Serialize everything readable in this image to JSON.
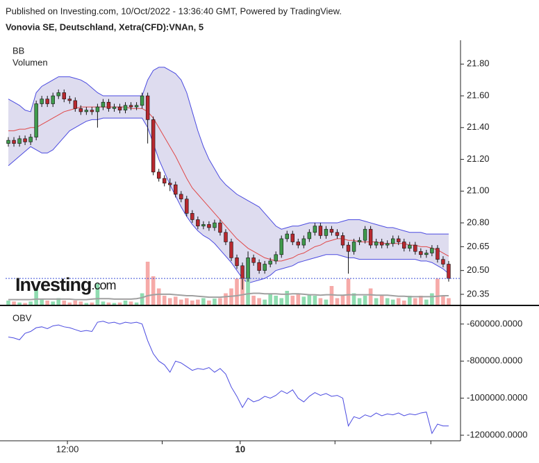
{
  "header": {
    "published": "Published on Investing.com, 10/Oct/2022 - 13:36:40 GMT, Powered by TradingView.",
    "title": "Vonovia SE, Deutschland, Xetra(CFD):VNAn, 5",
    "watermark": "Investing",
    "watermark_suffix": ".com"
  },
  "chart_data": [
    {
      "type": "candlestick",
      "legend": [
        "BB",
        "Volumen"
      ],
      "ylim": [
        20.28,
        21.95
      ],
      "yticks": [
        {
          "value": 21.8,
          "label": "21.80"
        },
        {
          "value": 21.6,
          "label": "21.60"
        },
        {
          "value": 21.4,
          "label": "21.40"
        },
        {
          "value": 21.2,
          "label": "21.20"
        },
        {
          "value": 21.0,
          "label": "21.00"
        },
        {
          "value": 20.8,
          "label": "20.80"
        },
        20.65,
        {
          "value": 20.5,
          "label": "20.50"
        },
        20.35
      ],
      "xlim": [
        -0.5,
        80.5
      ],
      "xticks": [
        {
          "value": 10.6,
          "label": "12:00",
          "bold": false
        },
        {
          "value": 27.6,
          "label": null
        },
        {
          "value": 41.6,
          "label": "10",
          "bold": true
        },
        {
          "value": 58.6,
          "label": null
        },
        {
          "value": 75.8,
          "label": null
        }
      ],
      "up_color": "#3f9a4c",
      "down_color": "#b8292f",
      "open": [
        21.3,
        21.32,
        21.3,
        21.33,
        21.31,
        21.34,
        21.55,
        21.58,
        21.55,
        21.6,
        21.62,
        21.58,
        21.57,
        21.52,
        21.5,
        21.51,
        21.5,
        21.53,
        21.56,
        21.52,
        21.53,
        21.51,
        21.54,
        21.53,
        21.54,
        21.6,
        21.45,
        21.12,
        21.08,
        21.05,
        21.04,
        20.98,
        20.95,
        20.86,
        20.82,
        20.78,
        20.79,
        20.77,
        20.8,
        20.74,
        20.68,
        20.58,
        20.53,
        20.45,
        20.58,
        20.55,
        20.5,
        20.54,
        20.56,
        20.6,
        20.7,
        20.73,
        20.68,
        20.66,
        20.7,
        20.74,
        20.78,
        20.72,
        20.76,
        20.74,
        20.72,
        20.66,
        20.62,
        20.68,
        20.69,
        20.76,
        20.66,
        20.68,
        20.66,
        20.67,
        20.7,
        20.68,
        20.64,
        20.66,
        20.62,
        20.6,
        20.61,
        20.64,
        20.57,
        20.54
      ],
      "high": [
        21.34,
        21.34,
        21.35,
        21.35,
        21.36,
        21.57,
        21.6,
        21.6,
        21.62,
        21.64,
        21.64,
        21.6,
        21.59,
        21.54,
        21.53,
        21.53,
        21.55,
        21.58,
        21.58,
        21.55,
        21.55,
        21.56,
        21.56,
        21.56,
        21.62,
        21.62,
        21.47,
        21.14,
        21.1,
        21.08,
        21.06,
        21.0,
        20.97,
        20.88,
        20.84,
        20.81,
        20.81,
        20.82,
        20.82,
        20.76,
        20.7,
        20.6,
        20.55,
        20.62,
        20.6,
        20.57,
        20.56,
        20.58,
        20.62,
        20.72,
        20.75,
        20.75,
        20.7,
        20.72,
        20.76,
        20.8,
        20.8,
        20.78,
        20.78,
        20.76,
        20.74,
        20.68,
        20.7,
        20.71,
        20.78,
        20.78,
        20.7,
        20.7,
        20.69,
        20.72,
        20.72,
        20.7,
        20.68,
        20.68,
        20.64,
        20.63,
        20.66,
        20.66,
        20.59,
        20.56
      ],
      "low": [
        21.28,
        21.28,
        21.28,
        21.29,
        21.29,
        21.32,
        21.53,
        21.53,
        21.53,
        21.58,
        21.56,
        21.55,
        21.5,
        21.48,
        21.48,
        21.48,
        21.4,
        21.51,
        21.5,
        21.5,
        21.49,
        21.49,
        21.51,
        21.51,
        21.52,
        21.3,
        21.1,
        21.06,
        21.03,
        21.0,
        20.96,
        20.93,
        20.84,
        20.8,
        20.76,
        20.76,
        20.75,
        20.75,
        20.72,
        20.66,
        20.56,
        20.51,
        20.38,
        20.43,
        20.53,
        20.48,
        20.48,
        20.52,
        20.54,
        20.58,
        20.68,
        20.66,
        20.64,
        20.64,
        20.68,
        20.72,
        20.7,
        20.7,
        20.72,
        20.7,
        20.64,
        20.48,
        20.6,
        20.66,
        20.67,
        20.64,
        20.64,
        20.64,
        20.64,
        20.65,
        20.66,
        20.62,
        20.62,
        20.6,
        20.58,
        20.58,
        20.59,
        20.55,
        20.52,
        20.43
      ],
      "close": [
        21.32,
        21.3,
        21.33,
        21.31,
        21.34,
        21.55,
        21.58,
        21.55,
        21.6,
        21.62,
        21.58,
        21.57,
        21.52,
        21.5,
        21.51,
        21.5,
        21.53,
        21.56,
        21.52,
        21.53,
        21.51,
        21.54,
        21.53,
        21.54,
        21.6,
        21.45,
        21.12,
        21.08,
        21.05,
        21.04,
        20.98,
        20.95,
        20.86,
        20.82,
        20.78,
        20.79,
        20.77,
        20.8,
        20.74,
        20.68,
        20.58,
        20.53,
        20.45,
        20.58,
        20.55,
        20.5,
        20.54,
        20.56,
        20.6,
        20.7,
        20.73,
        20.68,
        20.66,
        20.7,
        20.74,
        20.78,
        20.72,
        20.76,
        20.74,
        20.72,
        20.66,
        20.62,
        20.68,
        20.69,
        20.76,
        20.66,
        20.68,
        20.66,
        20.67,
        20.7,
        20.68,
        20.64,
        20.66,
        20.62,
        20.6,
        20.61,
        20.64,
        20.57,
        20.54,
        20.45
      ],
      "last_price_color": "#3b4fd8",
      "bb": {
        "fill": "#dedcef",
        "band_color": "#4a4ae0",
        "middle_color": "#e04848",
        "upper": [
          21.58,
          21.56,
          21.54,
          21.51,
          21.5,
          21.62,
          21.66,
          21.68,
          21.7,
          21.72,
          21.72,
          21.72,
          21.71,
          21.7,
          21.68,
          21.65,
          21.62,
          21.6,
          21.6,
          21.6,
          21.6,
          21.6,
          21.6,
          21.6,
          21.6,
          21.7,
          21.76,
          21.78,
          21.78,
          21.76,
          21.74,
          21.7,
          21.62,
          21.5,
          21.38,
          21.28,
          21.2,
          21.14,
          21.08,
          21.04,
          21.01,
          20.98,
          20.96,
          20.94,
          20.92,
          20.9,
          20.86,
          20.82,
          20.78,
          20.76,
          20.77,
          20.78,
          20.78,
          20.79,
          20.8,
          20.8,
          20.8,
          20.8,
          20.8,
          20.8,
          20.81,
          20.82,
          20.82,
          20.82,
          20.81,
          20.8,
          20.79,
          20.78,
          20.77,
          20.77,
          20.76,
          20.75,
          20.74,
          20.74,
          20.74,
          20.73,
          20.73,
          20.73,
          20.73,
          20.73
        ],
        "middle": [
          21.38,
          21.38,
          21.39,
          21.39,
          21.4,
          21.4,
          21.42,
          21.44,
          21.46,
          21.48,
          21.5,
          21.51,
          21.52,
          21.53,
          21.53,
          21.53,
          21.53,
          21.53,
          21.53,
          21.53,
          21.53,
          21.53,
          21.52,
          21.52,
          21.52,
          21.5,
          21.46,
          21.4,
          21.34,
          21.28,
          21.22,
          21.15,
          21.08,
          21.02,
          20.98,
          20.94,
          20.9,
          20.86,
          20.82,
          20.78,
          20.74,
          20.7,
          20.67,
          20.64,
          20.62,
          20.6,
          20.58,
          20.57,
          20.56,
          20.56,
          20.57,
          20.58,
          20.6,
          20.61,
          20.63,
          20.65,
          20.66,
          20.68,
          20.69,
          20.7,
          20.7,
          20.69,
          20.69,
          20.68,
          20.68,
          20.68,
          20.68,
          20.67,
          20.67,
          20.67,
          20.67,
          20.67,
          20.66,
          20.66,
          20.65,
          20.65,
          20.64,
          20.63,
          20.61,
          20.59
        ],
        "lower": [
          21.16,
          21.19,
          21.22,
          21.25,
          21.28,
          21.26,
          21.24,
          21.24,
          21.26,
          21.3,
          21.34,
          21.38,
          21.4,
          21.42,
          21.44,
          21.45,
          21.45,
          21.46,
          21.46,
          21.46,
          21.46,
          21.46,
          21.46,
          21.46,
          21.46,
          21.4,
          21.3,
          21.2,
          21.12,
          21.04,
          20.97,
          20.9,
          20.84,
          20.79,
          20.75,
          20.72,
          20.7,
          20.67,
          20.63,
          20.59,
          20.55,
          20.5,
          20.45,
          20.42,
          20.43,
          20.44,
          20.45,
          20.47,
          20.5,
          20.51,
          20.52,
          20.53,
          20.55,
          20.56,
          20.57,
          20.58,
          20.59,
          20.6,
          20.6,
          20.6,
          20.59,
          20.58,
          20.58,
          20.57,
          20.57,
          20.57,
          20.57,
          20.57,
          20.57,
          20.57,
          20.57,
          20.57,
          20.57,
          20.57,
          20.56,
          20.56,
          20.55,
          20.53,
          20.51,
          20.48
        ]
      },
      "volume": {
        "lim": [
          0,
          100
        ],
        "up_color": "#8fdcb0",
        "down_color": "#f6aaa8",
        "ma_color": "#a0a0a0",
        "values": [
          10,
          8,
          6,
          5,
          8,
          35,
          12,
          10,
          8,
          15,
          10,
          6,
          10,
          8,
          5,
          6,
          45,
          8,
          6,
          5,
          6,
          10,
          8,
          6,
          25,
          90,
          60,
          35,
          20,
          15,
          18,
          12,
          15,
          10,
          12,
          15,
          10,
          14,
          15,
          25,
          35,
          55,
          60,
          70,
          20,
          15,
          12,
          25,
          20,
          15,
          30,
          20,
          25,
          18,
          22,
          20,
          15,
          12,
          40,
          15,
          20,
          55,
          25,
          15,
          20,
          35,
          15,
          20,
          15,
          12,
          15,
          10,
          20,
          15,
          20,
          12,
          25,
          55,
          20,
          15
        ],
        "ma": [
          12,
          12,
          12,
          12,
          12,
          13,
          13,
          13,
          13,
          13,
          13,
          13,
          12,
          12,
          12,
          13,
          14,
          14,
          14,
          13,
          13,
          13,
          13,
          14,
          16,
          20,
          22,
          23,
          23,
          23,
          22,
          21,
          20,
          20,
          19,
          18,
          17,
          17,
          17,
          18,
          19,
          20,
          22,
          24,
          25,
          25,
          24,
          24,
          24,
          23,
          23,
          24,
          24,
          23,
          22,
          22,
          21,
          22,
          22,
          21,
          21,
          22,
          22,
          22,
          22,
          22,
          21,
          21,
          21,
          20,
          19,
          19,
          18,
          18,
          18,
          18,
          18,
          19,
          20,
          20
        ]
      }
    },
    {
      "type": "line",
      "title": "OBV",
      "color": "#4a4ae0",
      "ylim": [
        -1230000,
        -537000
      ],
      "yticks": [
        {
          "value": -600000,
          "label": "-600000.0000"
        },
        {
          "value": -800000,
          "label": "-800000.0000"
        },
        {
          "value": -1000000,
          "label": "-1000000.0000"
        },
        {
          "value": -1200000,
          "label": "-1200000.0000"
        }
      ],
      "values": [
        -670000,
        -675000,
        -685000,
        -650000,
        -640000,
        -620000,
        -615000,
        -625000,
        -610000,
        -605000,
        -615000,
        -620000,
        -630000,
        -640000,
        -635000,
        -640000,
        -590000,
        -585000,
        -595000,
        -590000,
        -600000,
        -590000,
        -595000,
        -590000,
        -600000,
        -690000,
        -760000,
        -800000,
        -820000,
        -860000,
        -800000,
        -810000,
        -830000,
        -850000,
        -840000,
        -845000,
        -835000,
        -860000,
        -840000,
        -870000,
        -940000,
        -990000,
        -1050000,
        -1000000,
        -1020000,
        -1010000,
        -990000,
        -1000000,
        -985000,
        -960000,
        -975000,
        -955000,
        -1000000,
        -1020000,
        -990000,
        -970000,
        -985000,
        -975000,
        -990000,
        -985000,
        -1000000,
        -1150000,
        -1100000,
        -1110000,
        -1090000,
        -1100000,
        -1080000,
        -1095000,
        -1085000,
        -1090000,
        -1080000,
        -1095000,
        -1085000,
        -1090000,
        -1080000,
        -1075000,
        -1190000,
        -1140000,
        -1150000,
        -1150000
      ]
    }
  ]
}
